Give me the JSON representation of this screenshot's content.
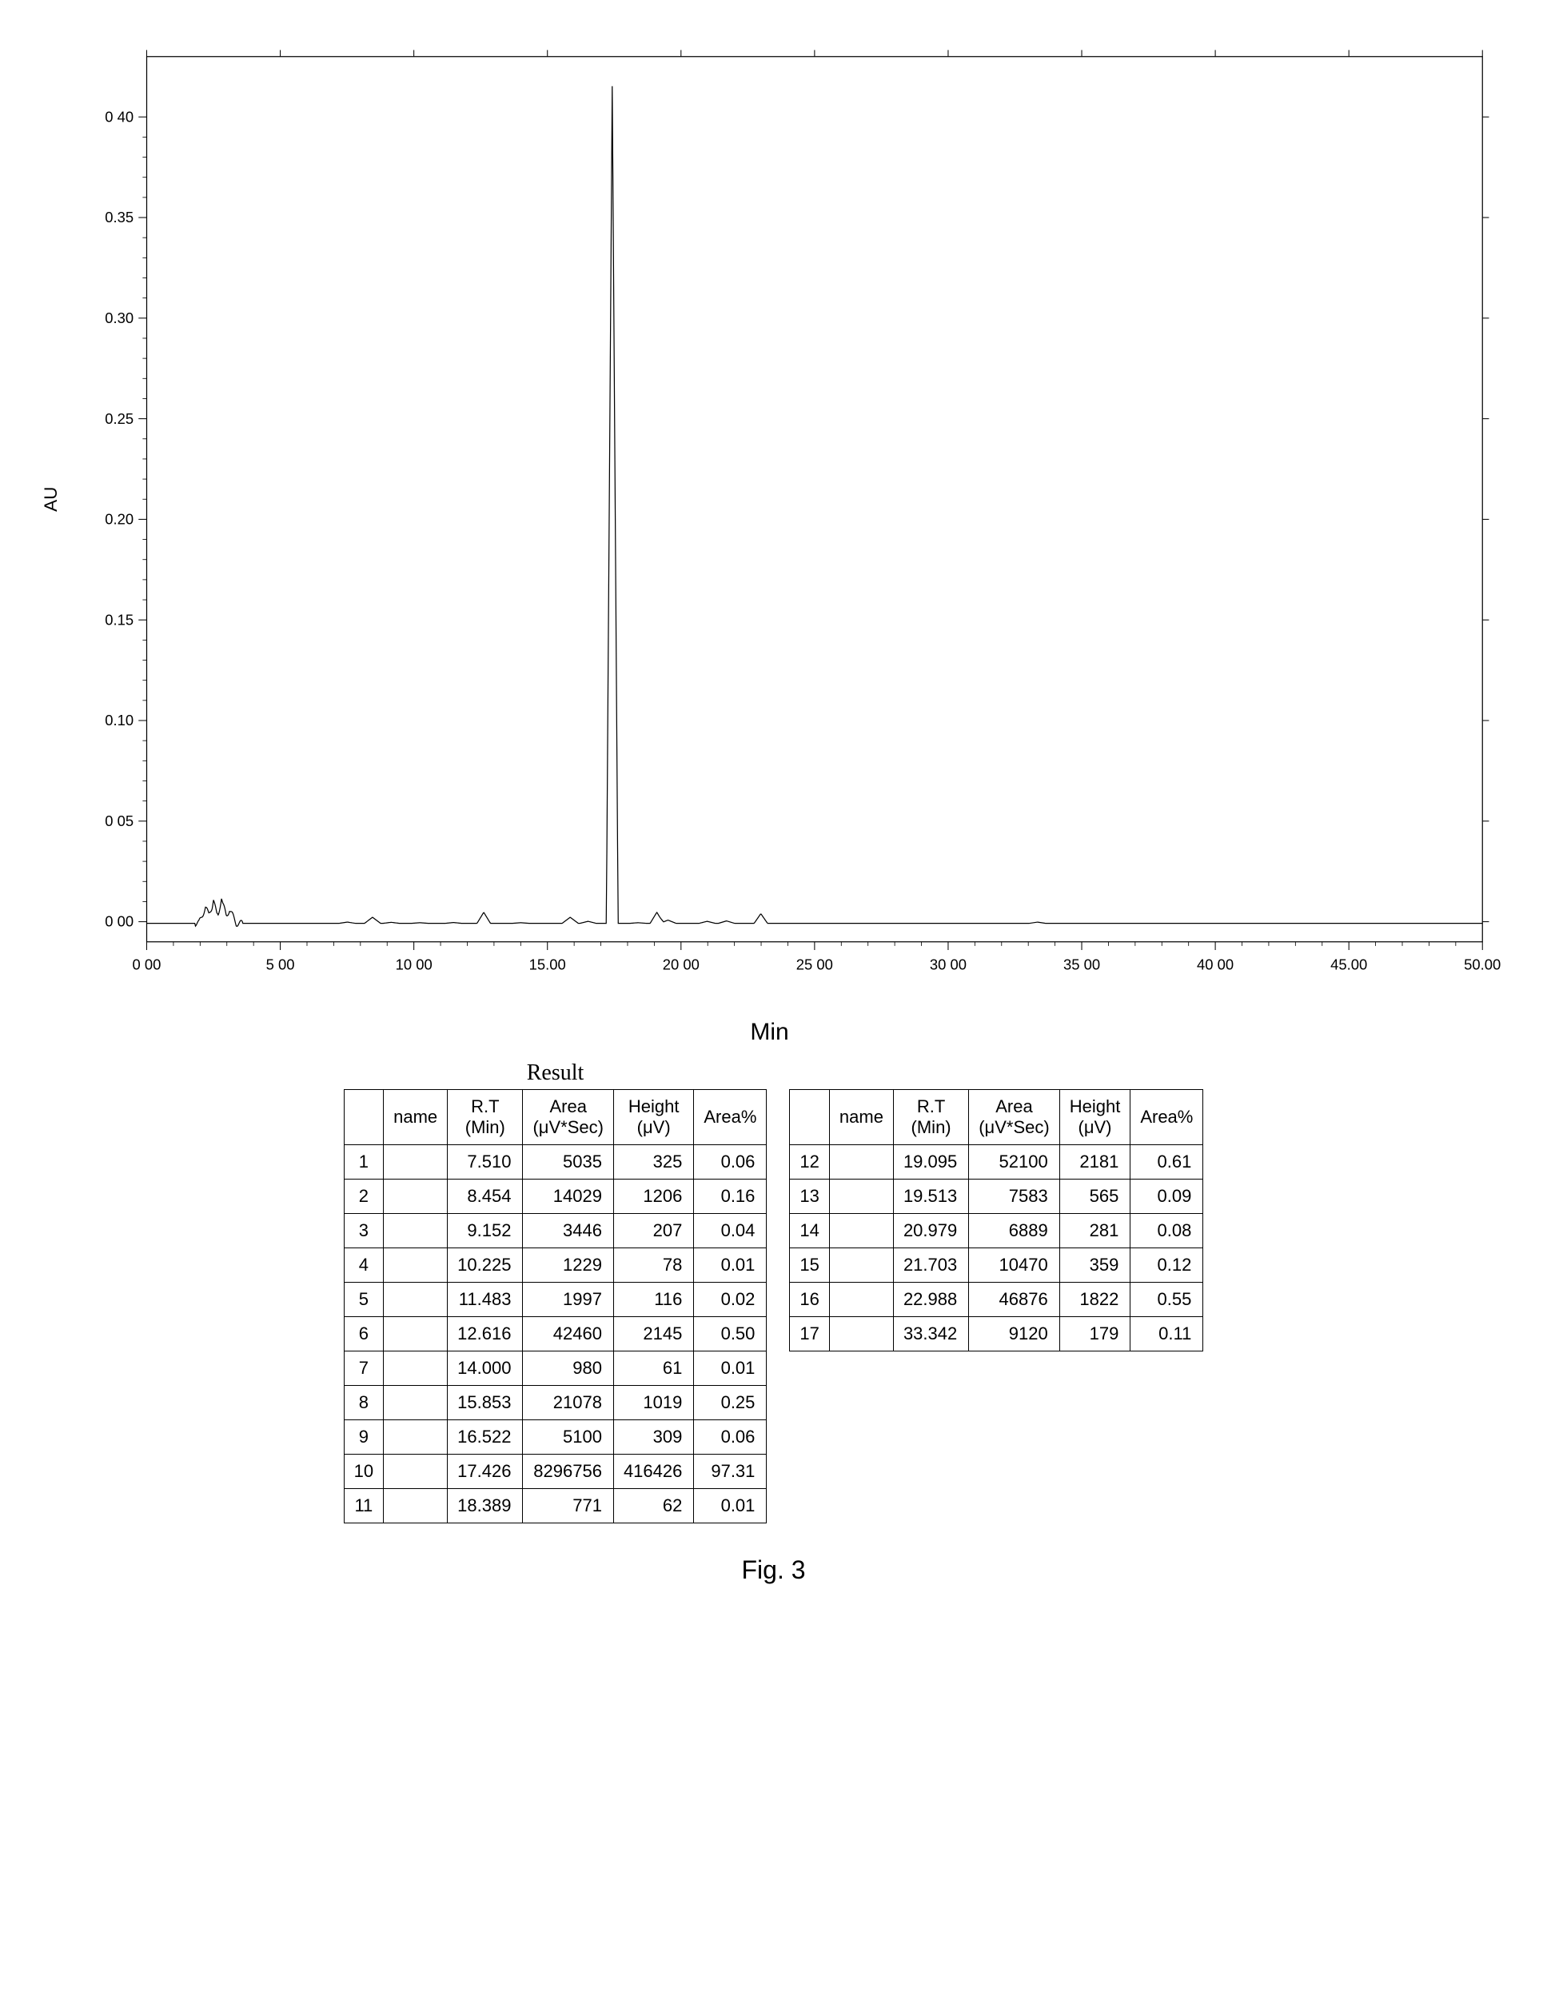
{
  "chart": {
    "type": "line",
    "background_color": "#ffffff",
    "line_color": "#000000",
    "axis_color": "#000000",
    "y_label": "AU",
    "x_label": "Min",
    "xlim": [
      0,
      50
    ],
    "ylim": [
      -0.01,
      0.43
    ],
    "x_ticks": [
      0,
      5,
      10,
      15,
      20,
      25,
      30,
      35,
      40,
      45,
      50
    ],
    "x_tick_labels": [
      "0 00",
      "5 00",
      "10 00",
      "15.00",
      "20 00",
      "25 00",
      "30 00",
      "35 00",
      "40 00",
      "45.00",
      "50.00"
    ],
    "y_ticks": [
      0,
      0.05,
      0.1,
      0.15,
      0.2,
      0.25,
      0.3,
      0.35,
      0.4
    ],
    "y_tick_labels": [
      "0 00",
      "0 05",
      "0.10",
      "0.15",
      "0.20",
      "0.25",
      "0.30",
      "0.35",
      "0 40"
    ],
    "peaks": [
      {
        "rt": 2.2,
        "h": 0.008
      },
      {
        "rt": 2.5,
        "h": 0.012
      },
      {
        "rt": 2.8,
        "h": 0.013
      },
      {
        "rt": 3.1,
        "h": 0.007
      },
      {
        "rt": 7.51,
        "h": 0.0006
      },
      {
        "rt": 8.454,
        "h": 0.003
      },
      {
        "rt": 9.152,
        "h": 0.0005
      },
      {
        "rt": 10.225,
        "h": 0.0003
      },
      {
        "rt": 11.483,
        "h": 0.0004
      },
      {
        "rt": 12.616,
        "h": 0.0055
      },
      {
        "rt": 14.0,
        "h": 0.0003
      },
      {
        "rt": 15.853,
        "h": 0.003
      },
      {
        "rt": 16.522,
        "h": 0.001
      },
      {
        "rt": 17.426,
        "h": 0.418
      },
      {
        "rt": 18.389,
        "h": 0.0003
      },
      {
        "rt": 19.095,
        "h": 0.0055
      },
      {
        "rt": 19.513,
        "h": 0.0016
      },
      {
        "rt": 20.979,
        "h": 0.001
      },
      {
        "rt": 21.703,
        "h": 0.0012
      },
      {
        "rt": 22.988,
        "h": 0.0048
      },
      {
        "rt": 33.342,
        "h": 0.0006
      }
    ],
    "tick_fontsize": 18,
    "label_fontsize": 22
  },
  "results_title": "Result",
  "columns": [
    "name",
    "R.T\n(Min)",
    "Area\n(μV*Sec)",
    "Height\n(μV)",
    "Area%"
  ],
  "table1_rows": [
    {
      "i": "1",
      "name": "",
      "rt": "7.510",
      "area": "5035",
      "height": "325",
      "areapct": "0.06"
    },
    {
      "i": "2",
      "name": "",
      "rt": "8.454",
      "area": "14029",
      "height": "1206",
      "areapct": "0.16"
    },
    {
      "i": "3",
      "name": "",
      "rt": "9.152",
      "area": "3446",
      "height": "207",
      "areapct": "0.04"
    },
    {
      "i": "4",
      "name": "",
      "rt": "10.225",
      "area": "1229",
      "height": "78",
      "areapct": "0.01"
    },
    {
      "i": "5",
      "name": "",
      "rt": "11.483",
      "area": "1997",
      "height": "116",
      "areapct": "0.02"
    },
    {
      "i": "6",
      "name": "",
      "rt": "12.616",
      "area": "42460",
      "height": "2145",
      "areapct": "0.50"
    },
    {
      "i": "7",
      "name": "",
      "rt": "14.000",
      "area": "980",
      "height": "61",
      "areapct": "0.01"
    },
    {
      "i": "8",
      "name": "",
      "rt": "15.853",
      "area": "21078",
      "height": "1019",
      "areapct": "0.25"
    },
    {
      "i": "9",
      "name": "",
      "rt": "16.522",
      "area": "5100",
      "height": "309",
      "areapct": "0.06"
    },
    {
      "i": "10",
      "name": "",
      "rt": "17.426",
      "area": "8296756",
      "height": "416426",
      "areapct": "97.31"
    },
    {
      "i": "11",
      "name": "",
      "rt": "18.389",
      "area": "771",
      "height": "62",
      "areapct": "0.01"
    }
  ],
  "table2_rows": [
    {
      "i": "12",
      "name": "",
      "rt": "19.095",
      "area": "52100",
      "height": "2181",
      "areapct": "0.61"
    },
    {
      "i": "13",
      "name": "",
      "rt": "19.513",
      "area": "7583",
      "height": "565",
      "areapct": "0.09"
    },
    {
      "i": "14",
      "name": "",
      "rt": "20.979",
      "area": "6889",
      "height": "281",
      "areapct": "0.08"
    },
    {
      "i": "15",
      "name": "",
      "rt": "21.703",
      "area": "10470",
      "height": "359",
      "areapct": "0.12"
    },
    {
      "i": "16",
      "name": "",
      "rt": "22.988",
      "area": "46876",
      "height": "1822",
      "areapct": "0.55"
    },
    {
      "i": "17",
      "name": "",
      "rt": "33.342",
      "area": "9120",
      "height": "179",
      "areapct": "0.11"
    }
  ],
  "figure_caption": "Fig. 3"
}
